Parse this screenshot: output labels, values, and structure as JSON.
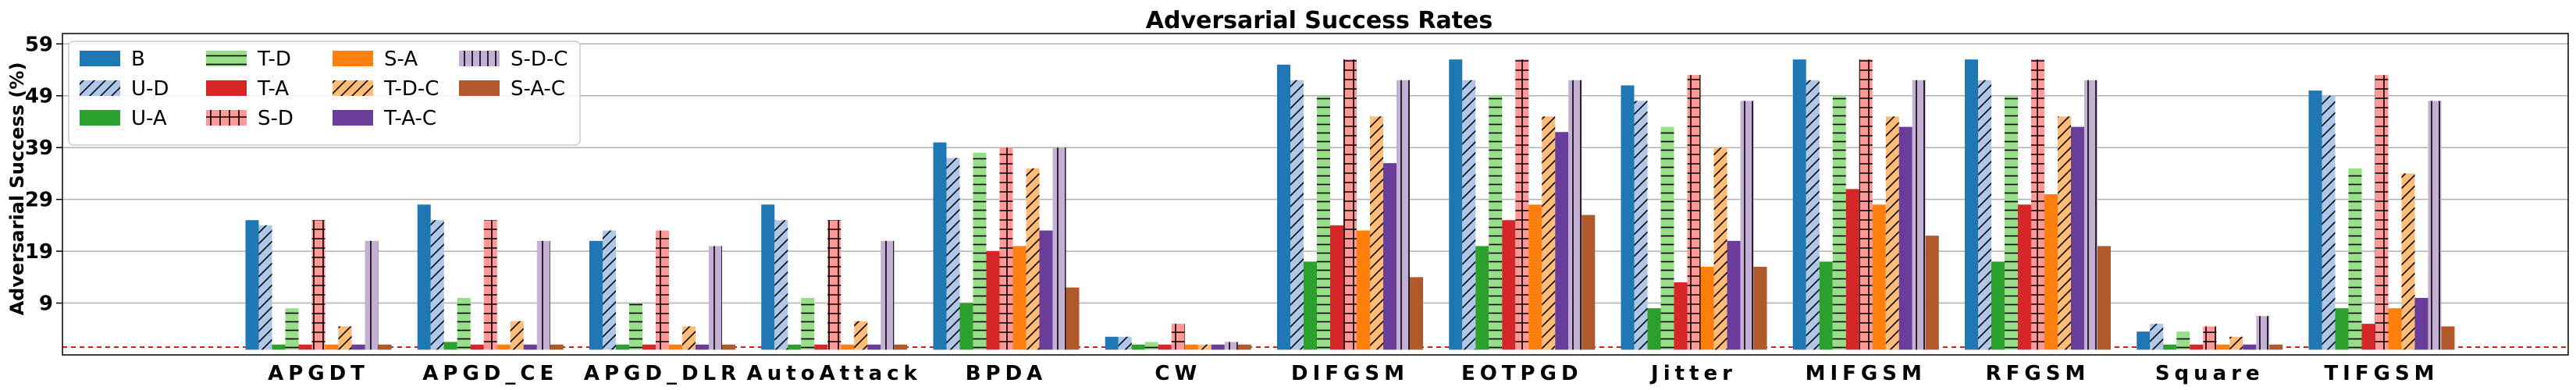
{
  "chart_data": {
    "type": "bar",
    "title": "Adversarial Success Rates",
    "xlabel": "",
    "ylabel": "Adversarial Success (%)",
    "ylim": [
      -1,
      61
    ],
    "yticks": [
      9,
      19,
      29,
      39,
      49,
      59
    ],
    "grid": "horizontal",
    "legend_position": "top-left",
    "baseline": 0.5,
    "categories": [
      "APGDT",
      "APGD_CE",
      "APGD_DLR",
      "AutoAttack",
      "BPDA",
      "CW",
      "DIFGSM",
      "EOTPGD",
      "Jitter",
      "MIFGSM",
      "RFGSM",
      "Square",
      "TIFGSM"
    ],
    "series": [
      {
        "name": "B",
        "color": "#1f77b4",
        "hatch": "none",
        "values": [
          25,
          28,
          21,
          28,
          40,
          2.5,
          55,
          56,
          51,
          56,
          56,
          3.5,
          50
        ]
      },
      {
        "name": "U-D",
        "color": "#aec7e8",
        "hatch": "diag",
        "values": [
          24,
          25,
          23,
          25,
          37,
          2.5,
          52,
          52,
          48,
          52,
          52,
          5,
          49
        ]
      },
      {
        "name": "U-A",
        "color": "#2ca02c",
        "hatch": "none",
        "values": [
          1,
          1.5,
          1,
          1,
          9,
          1,
          17,
          20,
          8,
          17,
          17,
          1,
          8
        ]
      },
      {
        "name": "T-D",
        "color": "#98df8a",
        "hatch": "horiz",
        "values": [
          8,
          10,
          9,
          10,
          38,
          1.5,
          49,
          49,
          43,
          49,
          49,
          3.5,
          35
        ]
      },
      {
        "name": "T-A",
        "color": "#d62728",
        "hatch": "none",
        "values": [
          1,
          1,
          1,
          1,
          19,
          1,
          24,
          25,
          13,
          31,
          28,
          1,
          5
        ]
      },
      {
        "name": "S-D",
        "color": "#ff9896",
        "hatch": "grid",
        "values": [
          25,
          25,
          23,
          25,
          39,
          5,
          56,
          56,
          53,
          56,
          56,
          4.5,
          53
        ]
      },
      {
        "name": "S-A",
        "color": "#ff7f0e",
        "hatch": "none",
        "values": [
          1,
          1,
          1,
          1,
          20,
          1,
          23,
          28,
          16,
          28,
          30,
          1,
          8
        ]
      },
      {
        "name": "T-D-C",
        "color": "#ffbb78",
        "hatch": "diag",
        "values": [
          4.5,
          5.5,
          4.5,
          5.5,
          35,
          1,
          45,
          45,
          39,
          45,
          45,
          2.5,
          34
        ]
      },
      {
        "name": "T-A-C",
        "color": "#6a3d9a",
        "hatch": "none",
        "values": [
          1,
          1,
          1,
          1,
          23,
          1,
          36,
          42,
          21,
          43,
          43,
          1,
          10
        ]
      },
      {
        "name": "S-D-C",
        "color": "#c5b0d5",
        "hatch": "vert",
        "values": [
          21,
          21,
          20,
          21,
          39,
          1.5,
          52,
          52,
          48,
          52,
          52,
          6.5,
          48
        ]
      },
      {
        "name": "S-A-C",
        "color": "#b0592a",
        "hatch": "none",
        "values": [
          1,
          1,
          1,
          1,
          12,
          1,
          14,
          26,
          16,
          22,
          20,
          1,
          4.5
        ]
      }
    ]
  }
}
